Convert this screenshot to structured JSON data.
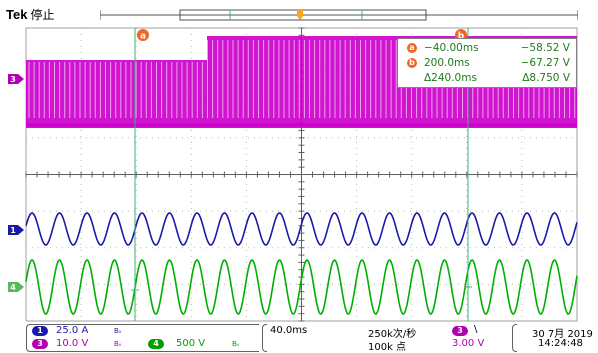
{
  "header": {
    "brand": "Tek",
    "status": "停止"
  },
  "cursor_readout": {
    "a": {
      "label": "a",
      "time": "−40.00ms",
      "value": "−58.52 V"
    },
    "b": {
      "label": "b",
      "time": "200.0ms",
      "value": "−67.27 V"
    },
    "delta": {
      "time": "Δ240.0ms",
      "value": "Δ8.750 V"
    }
  },
  "cursors": {
    "a_label": "a",
    "b_label": "b"
  },
  "channels": [
    {
      "num": "1",
      "scale": "25.0 A",
      "bw": "Bᵥ",
      "color": "#1a1aa8"
    },
    {
      "num": "3",
      "scale": "10.0 V",
      "bw": "Bᵥ",
      "color": "#b000b0"
    },
    {
      "num": "4",
      "scale": "500 V",
      "bw": "Bᵥ",
      "color": "#00a000"
    }
  ],
  "timebase": {
    "scale": "40.0ms",
    "sample_rate": "250k次/秒",
    "record_length": "100k 点"
  },
  "trigger": {
    "source": "3",
    "slope": "\\",
    "level": "3.00 V"
  },
  "datetime": {
    "date": "30 7月 2019",
    "time": "14:24:48"
  },
  "markers": {
    "ch3": "3",
    "ch1": "1",
    "ch4": "4"
  },
  "colors": {
    "ch1": "#1a1aa8",
    "ch3": "#cc00cc",
    "ch4": "#00b000",
    "cursor": "#3cb371",
    "badge": "#f26522"
  }
}
